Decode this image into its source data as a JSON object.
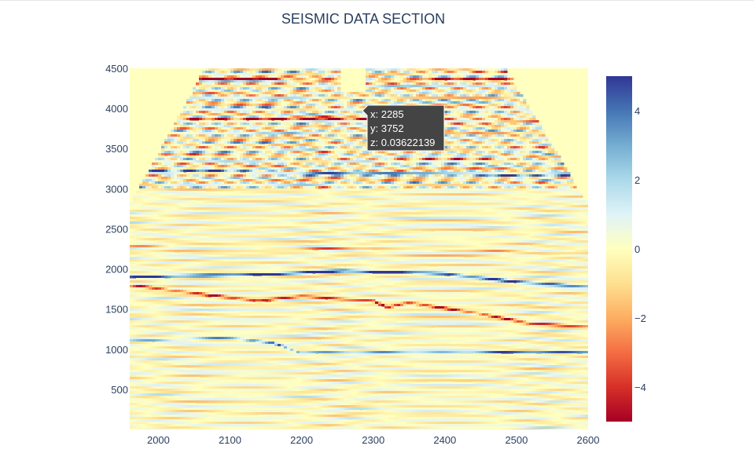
{
  "chart_data": {
    "type": "heatmap",
    "title": "SEISMIC DATA SECTION",
    "xlabel": "",
    "ylabel": "",
    "xlim": [
      1960,
      2600
    ],
    "ylim": [
      0,
      4500
    ],
    "x_ticks": [
      2000,
      2100,
      2200,
      2300,
      2400,
      2500,
      2600
    ],
    "y_ticks": [
      500,
      1000,
      1500,
      2000,
      2500,
      3000,
      3500,
      4000,
      4500
    ],
    "colorscale": "RdYlBu",
    "colorscale_stops": [
      "#a50026",
      "#d73027",
      "#f46d43",
      "#fdae61",
      "#fee090",
      "#ffffbf",
      "#e0f3f8",
      "#abd9e9",
      "#74add1",
      "#4575b4",
      "#313695"
    ],
    "zlim": [
      -5,
      5
    ],
    "colorbar_ticks": [
      4,
      2,
      0,
      -2,
      -4
    ],
    "colorbar_tick_labels": [
      "4",
      "2",
      "0",
      "−2",
      "−4"
    ],
    "background_color": "#ffffbf",
    "reflectors": [
      {
        "depth": [
          [
            1960,
            1900
          ],
          [
            2150,
            1930
          ],
          [
            2260,
            1980
          ],
          [
            2400,
            1940
          ],
          [
            2500,
            1840
          ],
          [
            2600,
            1780
          ]
        ],
        "amp": 4.5,
        "width": 18
      },
      {
        "depth": [
          [
            1960,
            1800
          ],
          [
            2140,
            1600
          ],
          [
            2200,
            1660
          ],
          [
            2300,
            1600
          ],
          [
            2320,
            1520
          ],
          [
            2350,
            1580
          ],
          [
            2450,
            1440
          ],
          [
            2520,
            1320
          ],
          [
            2600,
            1280
          ]
        ],
        "amp": -4.2,
        "width": 16
      },
      {
        "depth": [
          [
            2040,
            1120
          ],
          [
            2100,
            1140
          ],
          [
            2160,
            1080
          ],
          [
            2200,
            950
          ],
          [
            2260,
            960
          ]
        ],
        "amp": 3.5,
        "width": 14
      },
      {
        "depth": [
          [
            1960,
            2280
          ],
          [
            2300,
            2250
          ],
          [
            2600,
            2200
          ]
        ],
        "amp": -2.2,
        "width": 10
      },
      {
        "depth": [
          [
            2070,
            3880
          ],
          [
            2260,
            3870
          ],
          [
            2480,
            3850
          ]
        ],
        "amp": -4.5,
        "width": 12
      },
      {
        "depth": [
          [
            2040,
            3220
          ],
          [
            2300,
            3190
          ],
          [
            2560,
            3160
          ]
        ],
        "amp": 3.8,
        "width": 12
      },
      {
        "depth": [
          [
            2065,
            4370
          ],
          [
            2255,
            4360
          ],
          [
            2290,
            4380
          ],
          [
            2480,
            4370
          ]
        ],
        "amp": -4.8,
        "width": 10
      }
    ],
    "hover": {
      "x": "2285",
      "y": "3752",
      "z": "0.03622139"
    }
  },
  "tooltip": {
    "x_line": "x: 2285",
    "y_line": "y: 3752",
    "z_line": "z: 0.03622139"
  }
}
